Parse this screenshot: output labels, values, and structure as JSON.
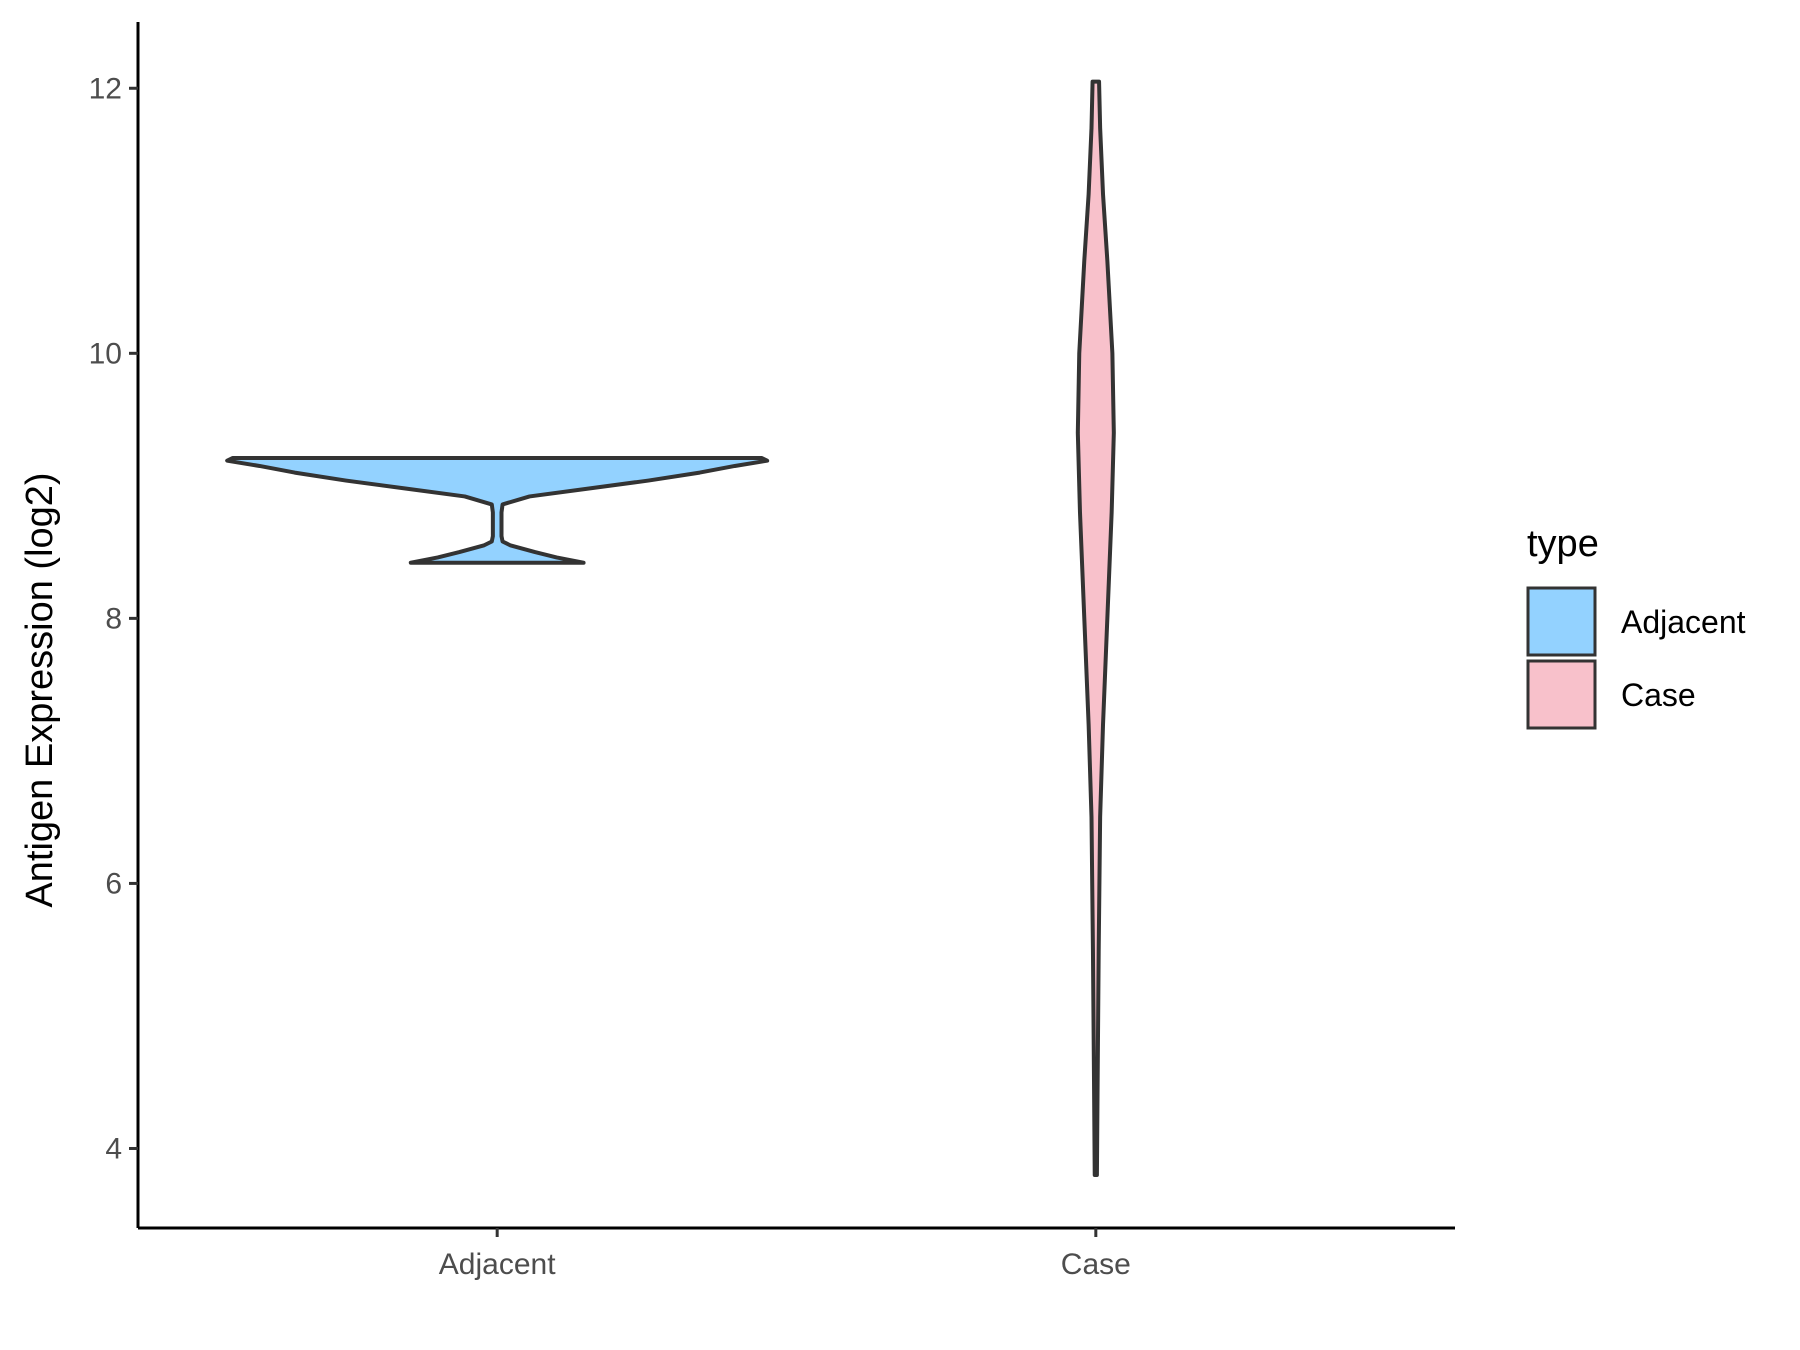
{
  "chart_data": {
    "type": "violin",
    "title": "",
    "xlabel": "",
    "ylabel": "Antigen Expression (log2)",
    "categories": [
      "Adjacent",
      "Case"
    ],
    "ylim": [
      3.4,
      12.5
    ],
    "yticks": [
      4,
      6,
      8,
      10,
      12
    ],
    "grid": false,
    "legend": {
      "title": "type",
      "position": "right",
      "entries": [
        {
          "label": "Adjacent",
          "color": "#93d2ff"
        },
        {
          "label": "Case",
          "color": "#f8c1cb"
        }
      ]
    },
    "series": [
      {
        "category": "Adjacent",
        "color": "#93d2ff",
        "min": 8.42,
        "max": 9.21,
        "density": [
          [
            8.42,
            0.32
          ],
          [
            8.46,
            0.22
          ],
          [
            8.5,
            0.14
          ],
          [
            8.55,
            0.05
          ],
          [
            8.58,
            0.02
          ],
          [
            8.62,
            0.016
          ],
          [
            8.7,
            0.016
          ],
          [
            8.8,
            0.016
          ],
          [
            8.86,
            0.02
          ],
          [
            8.92,
            0.12
          ],
          [
            8.98,
            0.34
          ],
          [
            9.04,
            0.56
          ],
          [
            9.1,
            0.75
          ],
          [
            9.15,
            0.88
          ],
          [
            9.19,
            1.0
          ],
          [
            9.21,
            0.98
          ]
        ]
      },
      {
        "category": "Case",
        "color": "#f8c1cb",
        "min": 3.8,
        "max": 12.05,
        "density": [
          [
            3.8,
            0.003
          ],
          [
            4.5,
            0.005
          ],
          [
            5.5,
            0.008
          ],
          [
            6.5,
            0.012
          ],
          [
            7.2,
            0.02
          ],
          [
            8.0,
            0.032
          ],
          [
            8.8,
            0.044
          ],
          [
            9.4,
            0.05
          ],
          [
            10.0,
            0.046
          ],
          [
            10.7,
            0.032
          ],
          [
            11.2,
            0.02
          ],
          [
            11.7,
            0.012
          ],
          [
            12.05,
            0.009
          ]
        ]
      }
    ]
  }
}
